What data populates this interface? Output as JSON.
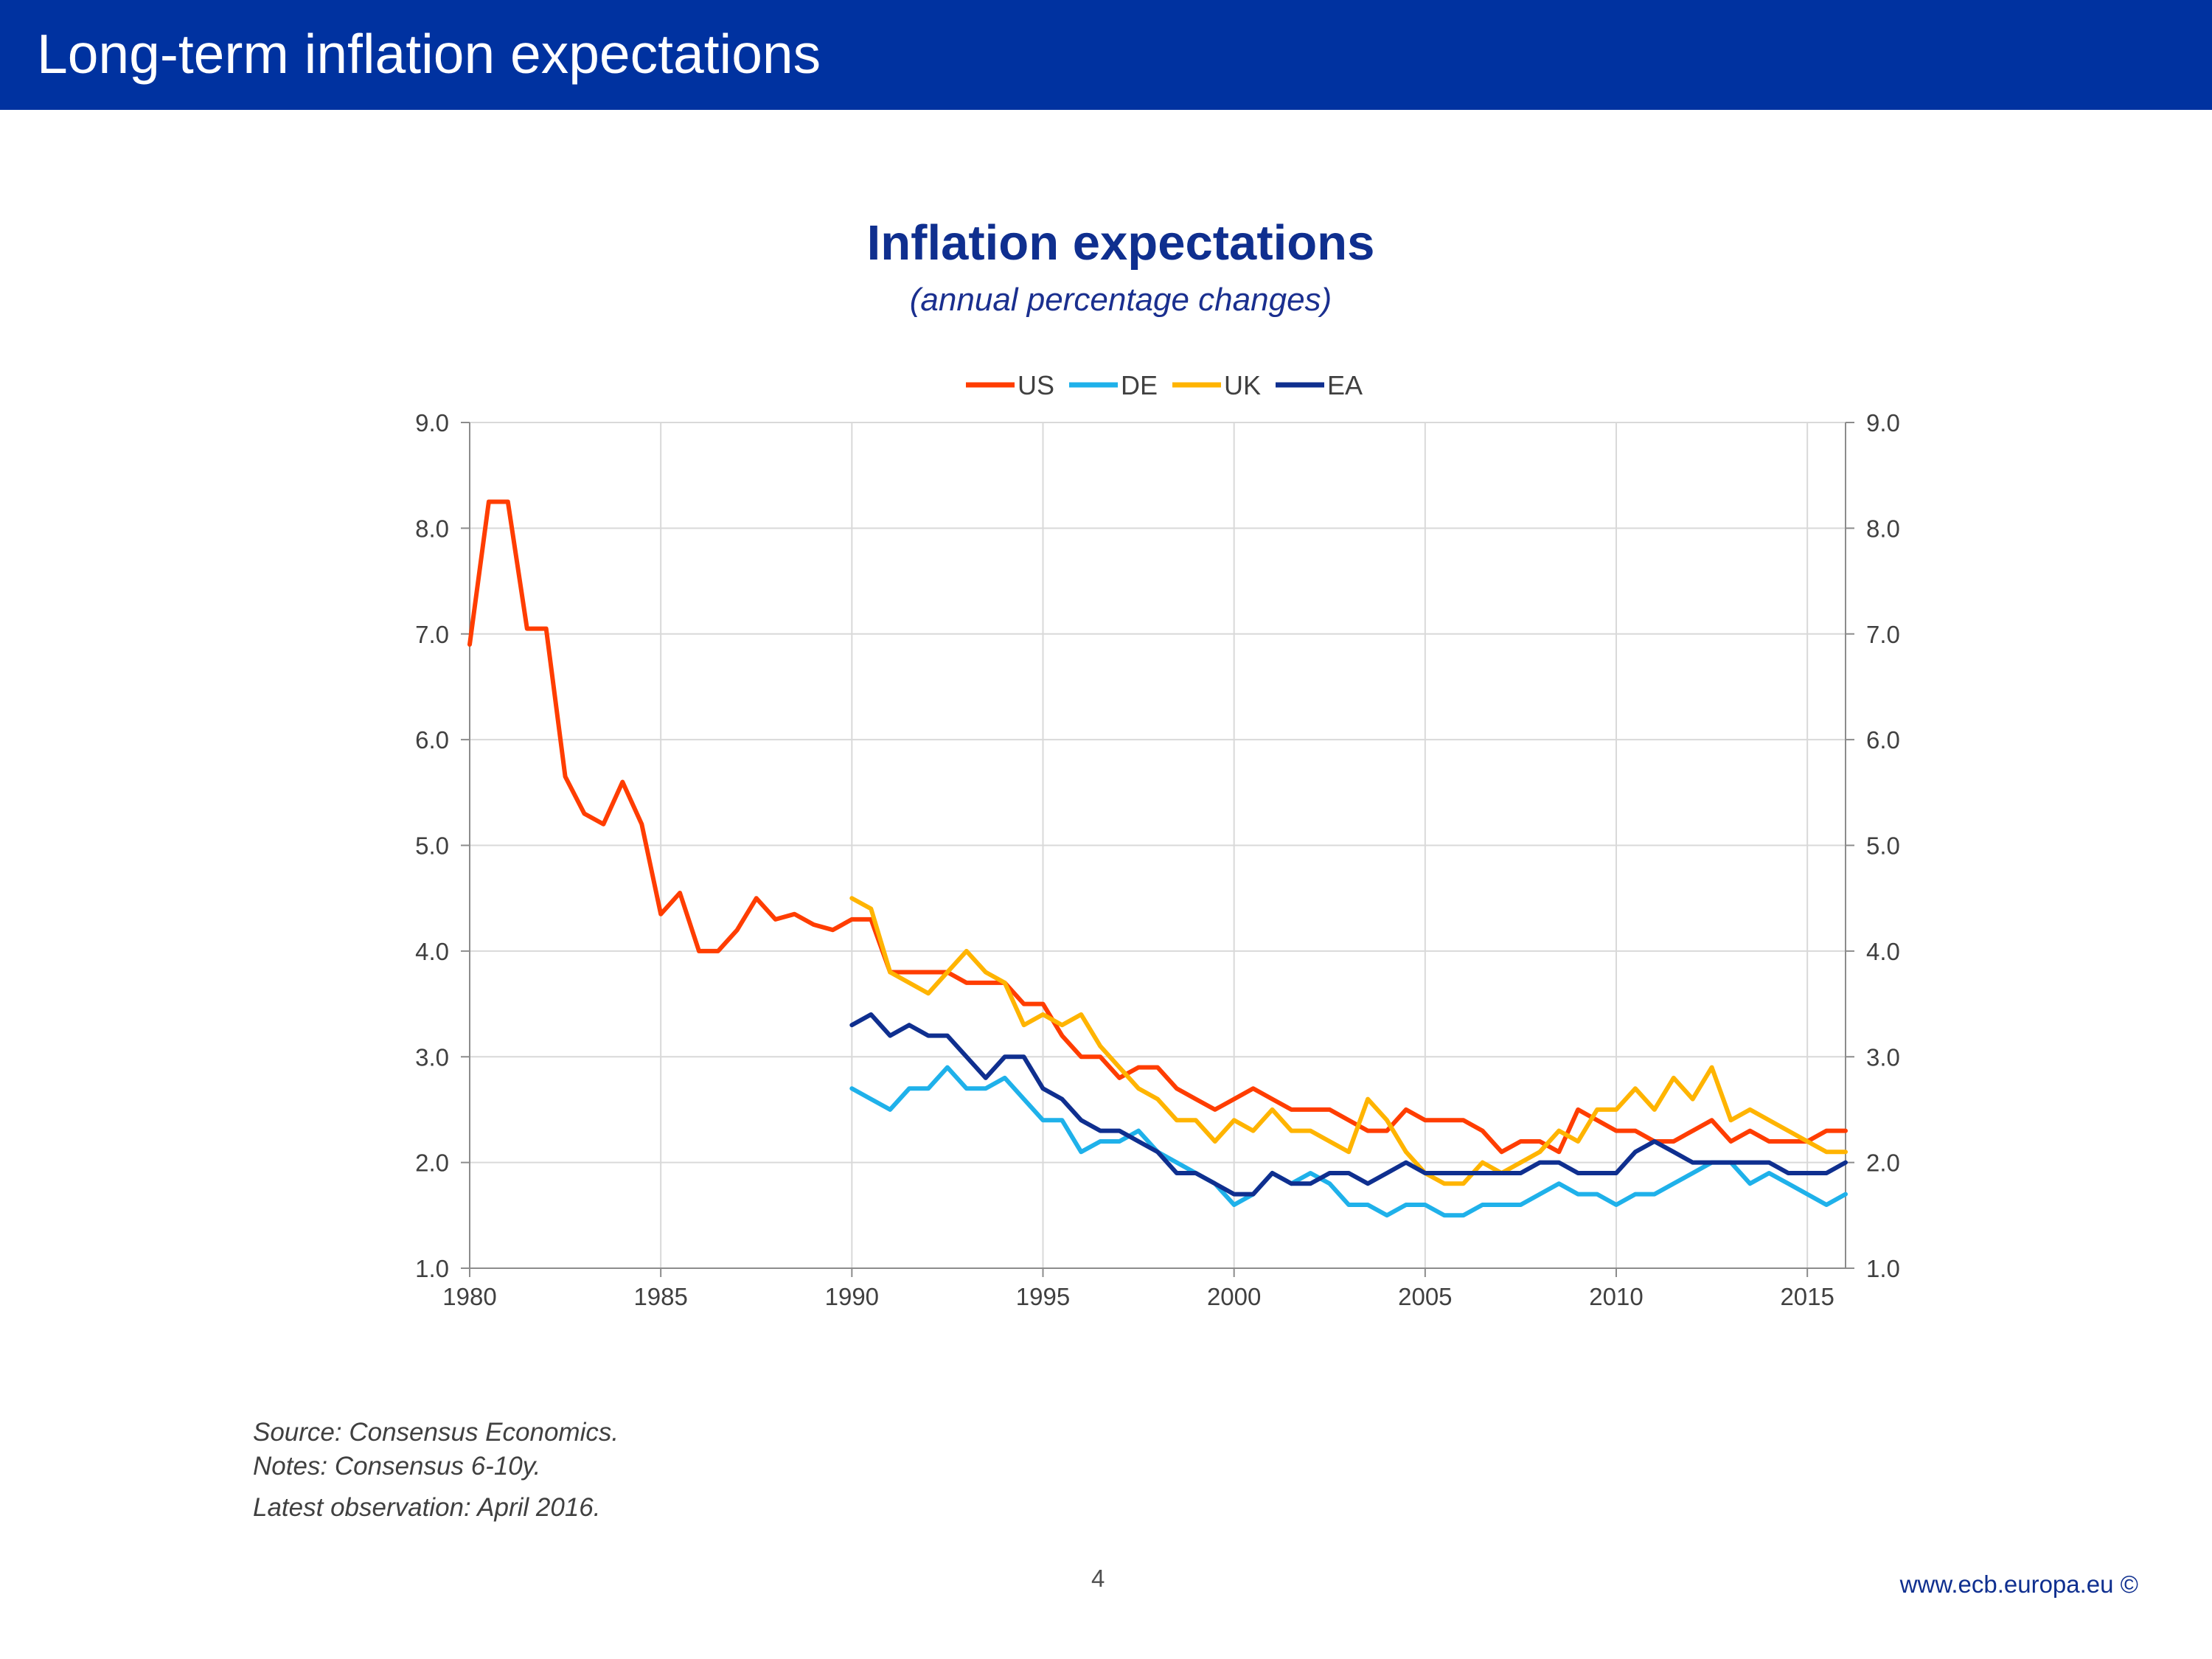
{
  "slide": {
    "title": "Long-term inflation expectations",
    "page_number": "4",
    "footer_url": "www.ecb.europa.eu ©"
  },
  "notes": {
    "source": "Source: Consensus Economics.",
    "notes": "Notes: Consensus 6-10y.",
    "latest": "Latest observation: April 2016."
  },
  "colors": {
    "banner": "#0032a0",
    "US": "#ff3d00",
    "DE": "#1fb1ea",
    "UK": "#ffb400",
    "EA": "#0f2f8f"
  },
  "chart_data": {
    "type": "line",
    "title": "Inflation expectations",
    "subtitle": "(annual percentage changes)",
    "xlabel": "",
    "ylabel": "",
    "xlim": [
      1980,
      2016
    ],
    "ylim": [
      1.0,
      9.0
    ],
    "xticks": [
      1980,
      1985,
      1990,
      1995,
      2000,
      2005,
      2010,
      2015
    ],
    "yticks": [
      1.0,
      2.0,
      3.0,
      4.0,
      5.0,
      6.0,
      7.0,
      8.0,
      9.0
    ],
    "ytick_labels": [
      "1.0",
      "2.0",
      "3.0",
      "4.0",
      "5.0",
      "6.0",
      "7.0",
      "8.0",
      "9.0"
    ],
    "grid": true,
    "secondary_y_axis": true,
    "legend_position": "top-center",
    "series": [
      {
        "name": "US",
        "x": [
          1980,
          1980.5,
          1981,
          1981.5,
          1982,
          1982.5,
          1983,
          1983.5,
          1984,
          1984.5,
          1985,
          1985.5,
          1986,
          1986.5,
          1987,
          1987.5,
          1988,
          1988.5,
          1989,
          1989.5,
          1990,
          1990.5,
          1991,
          1991.5,
          1992,
          1992.5,
          1993,
          1993.5,
          1994,
          1994.5,
          1995,
          1995.5,
          1996,
          1996.5,
          1997,
          1997.5,
          1998,
          1998.5,
          1999,
          1999.5,
          2000,
          2000.5,
          2001,
          2001.5,
          2002,
          2002.5,
          2003,
          2003.5,
          2004,
          2004.5,
          2005,
          2005.5,
          2006,
          2006.5,
          2007,
          2007.5,
          2008,
          2008.5,
          2009,
          2009.5,
          2010,
          2010.5,
          2011,
          2011.5,
          2012,
          2012.5,
          2013,
          2013.5,
          2014,
          2014.5,
          2015,
          2015.5,
          2016
        ],
        "values": [
          6.9,
          8.25,
          8.25,
          7.05,
          7.05,
          5.65,
          5.3,
          5.2,
          5.6,
          5.2,
          4.35,
          4.55,
          4.0,
          4.0,
          4.2,
          4.5,
          4.3,
          4.35,
          4.25,
          4.2,
          4.3,
          4.3,
          3.8,
          3.8,
          3.8,
          3.8,
          3.7,
          3.7,
          3.7,
          3.5,
          3.5,
          3.2,
          3.0,
          3.0,
          2.8,
          2.9,
          2.9,
          2.7,
          2.6,
          2.5,
          2.6,
          2.7,
          2.6,
          2.5,
          2.5,
          2.5,
          2.4,
          2.3,
          2.3,
          2.5,
          2.4,
          2.4,
          2.4,
          2.3,
          2.1,
          2.2,
          2.2,
          2.1,
          2.5,
          2.4,
          2.3,
          2.3,
          2.2,
          2.2,
          2.3,
          2.4,
          2.2,
          2.3,
          2.2,
          2.2,
          2.2,
          2.3,
          2.3
        ]
      },
      {
        "name": "DE",
        "x": [
          1990,
          1990.5,
          1991,
          1991.5,
          1992,
          1992.5,
          1993,
          1993.5,
          1994,
          1994.5,
          1995,
          1995.5,
          1996,
          1996.5,
          1997,
          1997.5,
          1998,
          1998.5,
          1999,
          1999.5,
          2000,
          2000.5,
          2001,
          2001.5,
          2002,
          2002.5,
          2003,
          2003.5,
          2004,
          2004.5,
          2005,
          2005.5,
          2006,
          2006.5,
          2007,
          2007.5,
          2008,
          2008.5,
          2009,
          2009.5,
          2010,
          2010.5,
          2011,
          2011.5,
          2012,
          2012.5,
          2013,
          2013.5,
          2014,
          2014.5,
          2015,
          2015.5,
          2016
        ],
        "values": [
          2.7,
          2.6,
          2.5,
          2.7,
          2.7,
          2.9,
          2.7,
          2.7,
          2.8,
          2.6,
          2.4,
          2.4,
          2.1,
          2.2,
          2.2,
          2.3,
          2.1,
          2.0,
          1.9,
          1.8,
          1.6,
          1.7,
          1.9,
          1.8,
          1.9,
          1.8,
          1.6,
          1.6,
          1.5,
          1.6,
          1.6,
          1.5,
          1.5,
          1.6,
          1.6,
          1.6,
          1.7,
          1.8,
          1.7,
          1.7,
          1.6,
          1.7,
          1.7,
          1.8,
          1.9,
          2.0,
          2.0,
          1.8,
          1.9,
          1.8,
          1.7,
          1.6,
          1.7
        ]
      },
      {
        "name": "UK",
        "x": [
          1990,
          1990.5,
          1991,
          1991.5,
          1992,
          1992.5,
          1993,
          1993.5,
          1994,
          1994.5,
          1995,
          1995.5,
          1996,
          1996.5,
          1997,
          1997.5,
          1998,
          1998.5,
          1999,
          1999.5,
          2000,
          2000.5,
          2001,
          2001.5,
          2002,
          2002.5,
          2003,
          2003.5,
          2004,
          2004.5,
          2005,
          2005.5,
          2006,
          2006.5,
          2007,
          2007.5,
          2008,
          2008.5,
          2009,
          2009.5,
          2010,
          2010.5,
          2011,
          2011.5,
          2012,
          2012.5,
          2013,
          2013.5,
          2014,
          2014.5,
          2015,
          2015.5,
          2016
        ],
        "values": [
          4.5,
          4.4,
          3.8,
          3.7,
          3.6,
          3.8,
          4.0,
          3.8,
          3.7,
          3.3,
          3.4,
          3.3,
          3.4,
          3.1,
          2.9,
          2.7,
          2.6,
          2.4,
          2.4,
          2.2,
          2.4,
          2.3,
          2.5,
          2.3,
          2.3,
          2.2,
          2.1,
          2.6,
          2.4,
          2.1,
          1.9,
          1.8,
          1.8,
          2.0,
          1.9,
          2.0,
          2.1,
          2.3,
          2.2,
          2.5,
          2.5,
          2.7,
          2.5,
          2.8,
          2.6,
          2.9,
          2.4,
          2.5,
          2.4,
          2.3,
          2.2,
          2.1,
          2.1
        ]
      },
      {
        "name": "EA",
        "x": [
          1990,
          1990.5,
          1991,
          1991.5,
          1992,
          1992.5,
          1993,
          1993.5,
          1994,
          1994.5,
          1995,
          1995.5,
          1996,
          1996.5,
          1997,
          1997.5,
          1998,
          1998.5,
          1999,
          1999.5,
          2000,
          2000.5,
          2001,
          2001.5,
          2002,
          2002.5,
          2003,
          2003.5,
          2004,
          2004.5,
          2005,
          2005.5,
          2006,
          2006.5,
          2007,
          2007.5,
          2008,
          2008.5,
          2009,
          2009.5,
          2010,
          2010.5,
          2011,
          2011.5,
          2012,
          2012.5,
          2013,
          2013.5,
          2014,
          2014.5,
          2015,
          2015.5,
          2016
        ],
        "values": [
          3.3,
          3.4,
          3.2,
          3.3,
          3.2,
          3.2,
          3.0,
          2.8,
          3.0,
          3.0,
          2.7,
          2.6,
          2.4,
          2.3,
          2.3,
          2.2,
          2.1,
          1.9,
          1.9,
          1.8,
          1.7,
          1.7,
          1.9,
          1.8,
          1.8,
          1.9,
          1.9,
          1.8,
          1.9,
          2.0,
          1.9,
          1.9,
          1.9,
          1.9,
          1.9,
          1.9,
          2.0,
          2.0,
          1.9,
          1.9,
          1.9,
          2.1,
          2.2,
          2.1,
          2.0,
          2.0,
          2.0,
          2.0,
          2.0,
          1.9,
          1.9,
          1.9,
          2.0
        ]
      }
    ]
  }
}
